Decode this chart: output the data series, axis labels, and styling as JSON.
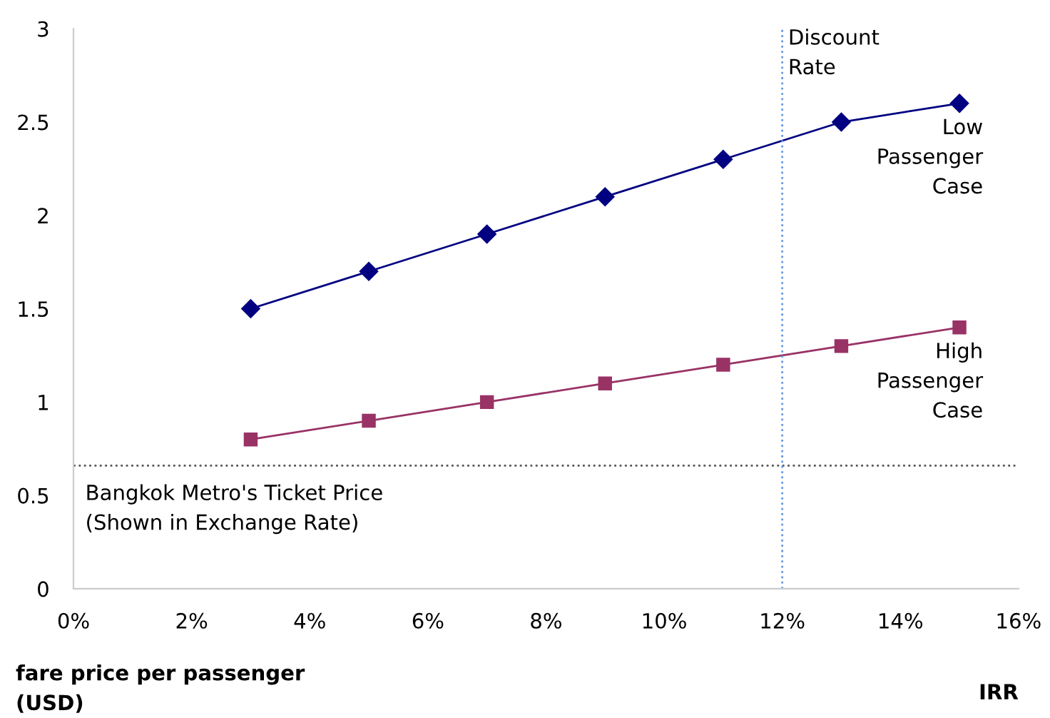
{
  "chart_data": {
    "type": "line",
    "xlabel": "IRR",
    "ylabel": "fare price per passenger\n(USD)",
    "x": [
      3,
      5,
      7,
      9,
      11,
      13,
      15
    ],
    "series": [
      {
        "name": "Low\nPassenger\nCase",
        "color": "#000080",
        "marker": "diamond",
        "values": [
          1.5,
          1.7,
          1.9,
          2.1,
          2.3,
          2.5,
          2.6
        ]
      },
      {
        "name": "High\nPassenger\nCase",
        "color": "#993366",
        "marker": "square",
        "values": [
          0.8,
          0.9,
          1.0,
          1.1,
          1.2,
          1.3,
          1.4
        ]
      }
    ],
    "xlim": [
      0,
      16
    ],
    "ylim": [
      0,
      3
    ],
    "xticks": [
      {
        "value": 0,
        "label": "0%"
      },
      {
        "value": 2,
        "label": "2%"
      },
      {
        "value": 4,
        "label": "4%"
      },
      {
        "value": 6,
        "label": "6%"
      },
      {
        "value": 8,
        "label": "8%"
      },
      {
        "value": 10,
        "label": "10%"
      },
      {
        "value": 12,
        "label": "12%"
      },
      {
        "value": 14,
        "label": "14%"
      },
      {
        "value": 16,
        "label": "16%"
      }
    ],
    "yticks": [
      0,
      0.5,
      1,
      1.5,
      2,
      2.5,
      3
    ],
    "ref_lines": [
      {
        "axis": "y",
        "value": 0.66,
        "label": "Bangkok Metro's Ticket Price\n(Shown in Exchange Rate)",
        "color": "#555555",
        "line_style": "dotted"
      },
      {
        "axis": "x",
        "value": 12,
        "label": "Discount\nRate",
        "color": "#6699dd",
        "line_style": "dotted"
      }
    ],
    "grid": false,
    "legend": false,
    "line_style": "solid"
  }
}
